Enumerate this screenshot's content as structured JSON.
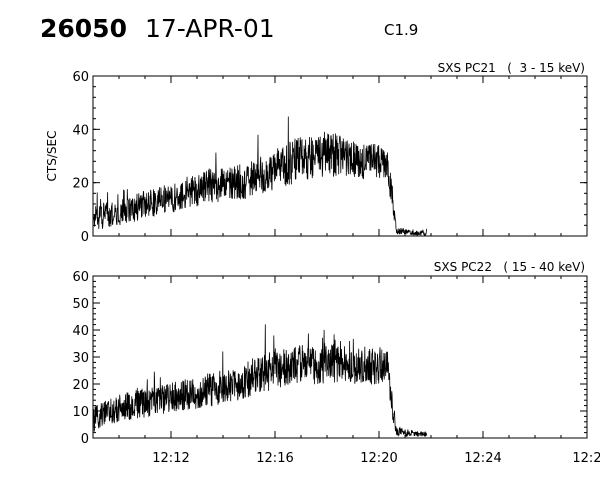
{
  "header": {
    "flare_id": "26050",
    "date": "17-APR-01",
    "goes_class": "C1.9"
  },
  "chart_data": [
    {
      "type": "line",
      "title": "SXS PC21   (  3 - 15 keV)",
      "ylabel": "CTS/SEC",
      "xlabel": "",
      "xlim": [
        "12:09",
        "12:28"
      ],
      "ylim": [
        0,
        60
      ],
      "yticks": [
        0,
        20,
        40,
        60
      ],
      "xticks": [
        "12:12",
        "12:16",
        "12:20",
        "12:24",
        "12:28"
      ],
      "x_tick_labels_shown": false,
      "series": [
        {
          "x": [
            "12:09:00",
            "12:09:30",
            "12:10:00",
            "12:10:30",
            "12:11:00",
            "12:11:30",
            "12:12:00",
            "12:12:30",
            "12:13:00",
            "12:13:30",
            "12:14:00",
            "12:14:30",
            "12:15:00",
            "12:15:30",
            "12:16:00",
            "12:16:30",
            "12:17:00",
            "12:17:30",
            "12:18:00",
            "12:18:30",
            "12:19:00",
            "12:19:30",
            "12:20:00",
            "12:20:20",
            "12:20:30",
            "12:20:40",
            "12:21:00",
            "12:21:30",
            "12:21:50"
          ],
          "y": [
            6,
            8,
            9,
            10,
            12,
            13,
            14,
            16,
            17,
            19,
            19,
            20,
            21,
            23,
            25,
            27,
            29,
            30,
            31,
            30,
            29,
            28,
            28,
            27,
            14,
            2,
            1.5,
            1.2,
            1.2
          ],
          "spread": [
            10,
            10,
            10,
            10,
            11,
            11,
            11,
            12,
            12,
            13,
            13,
            13,
            14,
            15,
            15,
            16,
            17,
            17,
            17,
            16,
            14,
            14,
            13,
            13,
            10,
            3,
            2,
            2,
            2
          ]
        }
      ]
    },
    {
      "type": "line",
      "title": "SXS PC22   ( 15 - 40 keV)",
      "ylabel": "",
      "xlabel": "",
      "xlim": [
        "12:09",
        "12:28"
      ],
      "ylim": [
        0,
        60
      ],
      "yticks": [
        0,
        10,
        20,
        30,
        40,
        50,
        60
      ],
      "xticks": [
        "12:12",
        "12:16",
        "12:20",
        "12:24",
        "12:28"
      ],
      "x_tick_labels": [
        "12:12",
        "12:16",
        "12:20",
        "12:24",
        "12:2"
      ],
      "x_tick_labels_shown": true,
      "series": [
        {
          "x": [
            "12:09:00",
            "12:09:30",
            "12:10:00",
            "12:10:30",
            "12:11:00",
            "12:11:30",
            "12:12:00",
            "12:12:30",
            "12:13:00",
            "12:13:30",
            "12:14:00",
            "12:14:30",
            "12:15:00",
            "12:15:30",
            "12:16:00",
            "12:16:30",
            "12:17:00",
            "12:17:30",
            "12:18:00",
            "12:18:30",
            "12:19:00",
            "12:19:30",
            "12:20:00",
            "12:20:20",
            "12:20:30",
            "12:20:40",
            "12:21:00",
            "12:21:30",
            "12:21:50"
          ],
          "y": [
            7,
            9,
            11,
            12,
            13,
            14,
            15,
            16,
            16,
            18,
            19,
            20,
            22,
            24,
            25,
            26,
            27,
            27,
            28,
            28,
            27,
            27,
            26,
            26,
            13,
            3,
            2,
            1.5,
            1.5
          ],
          "spread": [
            10,
            10,
            10,
            11,
            11,
            11,
            11,
            12,
            12,
            13,
            13,
            13,
            14,
            14,
            15,
            15,
            15,
            15,
            15,
            15,
            14,
            14,
            13,
            13,
            10,
            4,
            3,
            2,
            2
          ]
        }
      ]
    }
  ]
}
